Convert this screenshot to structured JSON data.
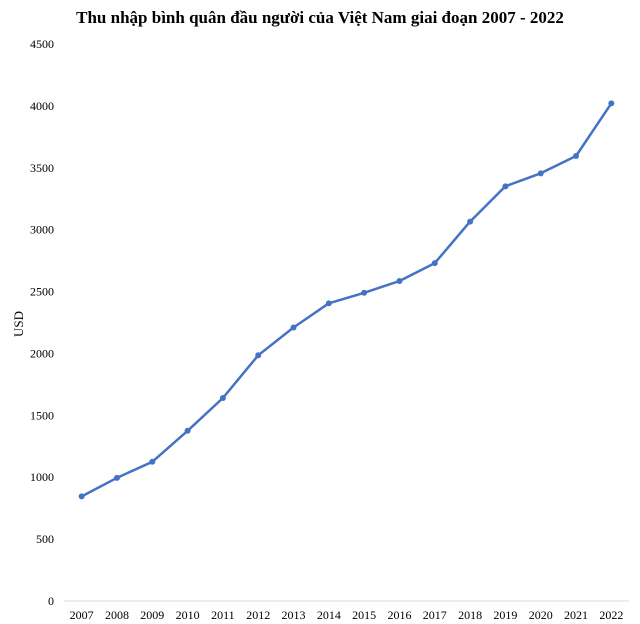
{
  "chart_data": {
    "type": "line",
    "title": "Thu nhập bình quân đầu người của Việt Nam giai đoạn 2007 - 2022",
    "xlabel": "",
    "ylabel": "USD",
    "x": [
      "2007",
      "2008",
      "2009",
      "2010",
      "2011",
      "2012",
      "2013",
      "2014",
      "2015",
      "2016",
      "2017",
      "2018",
      "2019",
      "2020",
      "2021",
      "2022"
    ],
    "series": [
      {
        "values": [
          845,
          995,
          1125,
          1375,
          1640,
          1985,
          2210,
          2405,
          2490,
          2585,
          2730,
          3065,
          3350,
          3455,
          3595,
          4020
        ],
        "color": "#4472C4"
      }
    ],
    "ylim": [
      0,
      4500
    ],
    "yticks": [
      0,
      500,
      1000,
      1500,
      2000,
      2500,
      3000,
      3500,
      4000,
      4500
    ],
    "grid": false,
    "legend": "none",
    "markers": true
  }
}
